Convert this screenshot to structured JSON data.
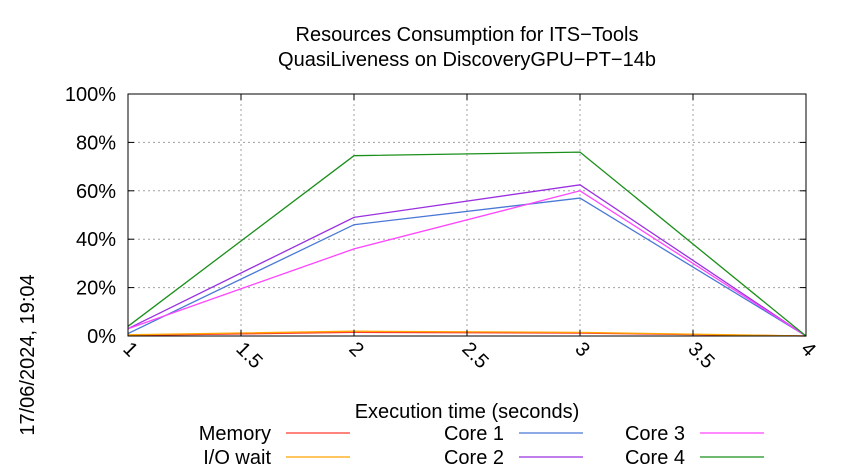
{
  "chart_data": {
    "type": "line",
    "title": [
      "Resources Consumption for ITS−Tools",
      "QuasiLiveness on DiscoveryGPU−PT−14b"
    ],
    "xlabel": "Execution time (seconds)",
    "ylabel": "",
    "xlim": [
      1,
      4
    ],
    "ylim": [
      0,
      100
    ],
    "x_ticks": [
      {
        "value": 1,
        "label": "1"
      },
      {
        "value": 1.5,
        "label": "1.5"
      },
      {
        "value": 2,
        "label": "2"
      },
      {
        "value": 2.5,
        "label": "2.5"
      },
      {
        "value": 3,
        "label": "3"
      },
      {
        "value": 3.5,
        "label": "3.5"
      },
      {
        "value": 4,
        "label": "4"
      }
    ],
    "y_ticks": [
      {
        "value": 0,
        "label": "0%"
      },
      {
        "value": 20,
        "label": "20%"
      },
      {
        "value": 40,
        "label": "40%"
      },
      {
        "value": 60,
        "label": "60%"
      },
      {
        "value": 80,
        "label": "80%"
      },
      {
        "value": 100,
        "label": "100%"
      }
    ],
    "grid": true,
    "legend_position": "bottom",
    "timestamp": "17/06/2024, 19:04",
    "series": [
      {
        "name": "Memory",
        "color": "#ff3b30",
        "x": [
          1,
          2,
          3,
          4
        ],
        "y": [
          0.3,
          1.5,
          1.2,
          0
        ]
      },
      {
        "name": "I/O wait",
        "color": "#ffa500",
        "x": [
          1,
          2,
          3,
          4
        ],
        "y": [
          0.5,
          2,
          1.5,
          0
        ]
      },
      {
        "name": "Core 1",
        "color": "#4a78d6",
        "x": [
          1,
          2,
          3,
          4
        ],
        "y": [
          1,
          46,
          57,
          0
        ]
      },
      {
        "name": "Core 2",
        "color": "#9b30e0",
        "x": [
          1,
          2,
          3,
          4
        ],
        "y": [
          3,
          49,
          62.5,
          0
        ]
      },
      {
        "name": "Core 3",
        "color": "#ff44ff",
        "x": [
          1,
          2,
          3,
          4
        ],
        "y": [
          3,
          36,
          60,
          0
        ]
      },
      {
        "name": "Core 4",
        "color": "#1a8f1a",
        "x": [
          1,
          2,
          3,
          4
        ],
        "y": [
          4,
          74.5,
          76,
          0
        ]
      }
    ]
  }
}
